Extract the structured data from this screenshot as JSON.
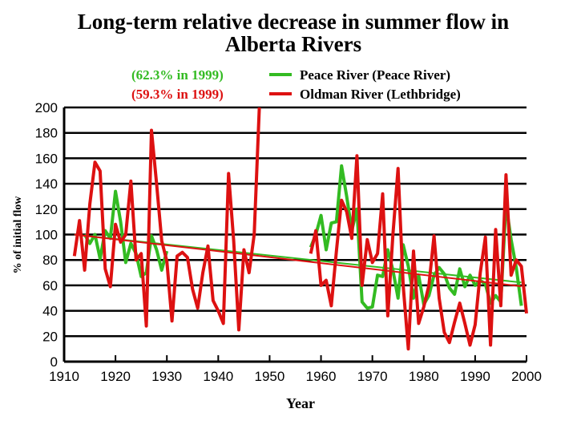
{
  "chart_data": {
    "type": "line",
    "title_lines": [
      "Long-term relative decrease in summer flow in",
      "Alberta Rivers"
    ],
    "xlabel": "Year",
    "ylabel": "% of initial flow",
    "xlim": [
      1910,
      2000
    ],
    "ylim": [
      0,
      200
    ],
    "xticks": [
      1910,
      1920,
      1930,
      1940,
      1950,
      1960,
      1970,
      1980,
      1990,
      2000
    ],
    "yticks": [
      0,
      20,
      40,
      60,
      80,
      100,
      120,
      140,
      160,
      180,
      200
    ],
    "grid": "horizontal",
    "legend_placement": "top",
    "series": [
      {
        "name": "Peace River (Peace River)",
        "note": "(62.3% in 1999)",
        "color": "#33bb22",
        "segments": [
          [
            [
              1914,
              100
            ],
            [
              1915,
              93
            ],
            [
              1916,
              100
            ],
            [
              1917,
              81
            ],
            [
              1918,
              103
            ],
            [
              1919,
              97
            ],
            [
              1920,
              134
            ],
            [
              1921,
              110
            ],
            [
              1922,
              78
            ],
            [
              1923,
              93
            ],
            [
              1924,
              85
            ],
            [
              1925,
              67
            ],
            [
              1926,
              70
            ],
            [
              1927,
              99
            ],
            [
              1928,
              88
            ],
            [
              1929,
              72
            ],
            [
              1930,
              87
            ]
          ],
          [
            [
              1958,
              90
            ],
            [
              1959,
              100
            ],
            [
              1960,
              115
            ],
            [
              1961,
              88
            ],
            [
              1962,
              109
            ],
            [
              1963,
              110
            ],
            [
              1964,
              154
            ],
            [
              1965,
              130
            ],
            [
              1966,
              103
            ],
            [
              1967,
              120
            ],
            [
              1968,
              47
            ],
            [
              1969,
              42
            ],
            [
              1970,
              43
            ],
            [
              1971,
              68
            ],
            [
              1972,
              67
            ],
            [
              1973,
              88
            ],
            [
              1974,
              72
            ],
            [
              1975,
              50
            ],
            [
              1976,
              92
            ],
            [
              1977,
              75
            ],
            [
              1978,
              50
            ],
            [
              1979,
              68
            ],
            [
              1980,
              45
            ],
            [
              1981,
              52
            ],
            [
              1982,
              68
            ],
            [
              1983,
              74
            ],
            [
              1984,
              69
            ],
            [
              1985,
              58
            ],
            [
              1986,
              53
            ],
            [
              1987,
              73
            ],
            [
              1988,
              59
            ],
            [
              1989,
              68
            ],
            [
              1990,
              60
            ],
            [
              1991,
              64
            ],
            [
              1992,
              61
            ],
            [
              1993,
              46
            ],
            [
              1994,
              52
            ],
            [
              1995,
              47
            ],
            [
              1996,
              124
            ],
            [
              1997,
              96
            ],
            [
              1998,
              74
            ],
            [
              1999,
              44
            ]
          ]
        ],
        "trend": [
          [
            1912,
            100
          ],
          [
            1999,
            62.3
          ]
        ]
      },
      {
        "name": "Oldman River (Lethbridge)",
        "note": "(59.3% in 1999)",
        "color": "#dd1111",
        "segments": [
          [
            [
              1912,
              83
            ],
            [
              1913,
              111
            ],
            [
              1914,
              72
            ],
            [
              1915,
              124
            ],
            [
              1916,
              157
            ],
            [
              1917,
              150
            ],
            [
              1918,
              73
            ],
            [
              1919,
              59
            ],
            [
              1920,
              108
            ],
            [
              1921,
              94
            ],
            [
              1922,
              100
            ],
            [
              1923,
              142
            ],
            [
              1924,
              80
            ],
            [
              1925,
              85
            ],
            [
              1926,
              28
            ],
            [
              1927,
              182
            ],
            [
              1928,
              140
            ],
            [
              1929,
              95
            ],
            [
              1930,
              79
            ],
            [
              1931,
              32
            ],
            [
              1932,
              83
            ],
            [
              1933,
              86
            ],
            [
              1934,
              82
            ],
            [
              1935,
              57
            ],
            [
              1936,
              42
            ],
            [
              1937,
              70
            ],
            [
              1938,
              91
            ],
            [
              1939,
              48
            ],
            [
              1940,
              40
            ],
            [
              1941,
              30
            ],
            [
              1942,
              148
            ],
            [
              1943,
              95
            ],
            [
              1944,
              25
            ],
            [
              1945,
              88
            ],
            [
              1946,
              70
            ],
            [
              1947,
              100
            ],
            [
              1948,
              200
            ]
          ],
          [
            [
              1958,
              85
            ],
            [
              1959,
              103
            ],
            [
              1960,
              60
            ],
            [
              1961,
              64
            ],
            [
              1962,
              44
            ],
            [
              1963,
              87
            ],
            [
              1964,
              127
            ],
            [
              1965,
              118
            ],
            [
              1966,
              97
            ],
            [
              1967,
              162
            ],
            [
              1968,
              60
            ],
            [
              1969,
              96
            ],
            [
              1970,
              78
            ],
            [
              1971,
              85
            ],
            [
              1972,
              132
            ],
            [
              1973,
              36
            ],
            [
              1974,
              100
            ],
            [
              1975,
              152
            ],
            [
              1976,
              60
            ],
            [
              1977,
              10
            ],
            [
              1978,
              87
            ],
            [
              1979,
              30
            ],
            [
              1980,
              43
            ],
            [
              1981,
              60
            ],
            [
              1982,
              99
            ],
            [
              1983,
              50
            ],
            [
              1984,
              23
            ],
            [
              1985,
              15
            ],
            [
              1986,
              31
            ],
            [
              1987,
              46
            ],
            [
              1988,
              30
            ],
            [
              1989,
              13
            ],
            [
              1990,
              29
            ],
            [
              1991,
              70
            ],
            [
              1992,
              98
            ],
            [
              1993,
              13
            ],
            [
              1994,
              104
            ],
            [
              1995,
              44
            ],
            [
              1996,
              147
            ],
            [
              1997,
              68
            ],
            [
              1998,
              80
            ],
            [
              1999,
              75
            ],
            [
              2000,
              38
            ]
          ]
        ],
        "trend": [
          [
            1912,
            100
          ],
          [
            1999,
            59.3
          ]
        ]
      }
    ]
  }
}
